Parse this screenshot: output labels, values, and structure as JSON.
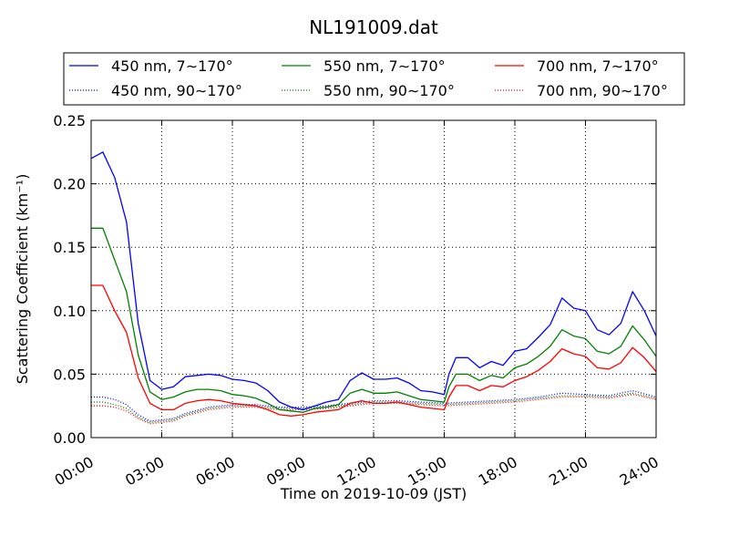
{
  "chart_data": {
    "type": "line",
    "title": "NL191009.dat",
    "xlabel": "Time on 2019-10-09 (JST)",
    "ylabel": "Scattering Coefficient (km⁻¹)",
    "x_unit": "hour",
    "xlim": [
      0,
      24
    ],
    "ylim": [
      0,
      0.25
    ],
    "xticks": [
      0,
      3,
      6,
      9,
      12,
      15,
      18,
      21,
      24
    ],
    "xtick_labels": [
      "00:00",
      "03:00",
      "06:00",
      "09:00",
      "12:00",
      "15:00",
      "18:00",
      "21:00",
      "24:00"
    ],
    "yticks": [
      0,
      0.05,
      0.1,
      0.15,
      0.2,
      0.25
    ],
    "ytick_labels": [
      "0.00",
      "0.05",
      "0.10",
      "0.15",
      "0.20",
      "0.25"
    ],
    "grid": true,
    "legend_position": "top, above plot",
    "series": [
      {
        "name": "450 nm, 7∼170°",
        "color": "#0000ff",
        "style": "solid",
        "x": [
          0,
          0.5,
          1,
          1.5,
          2,
          2.5,
          3,
          3.5,
          4,
          4.5,
          5,
          5.5,
          6,
          6.5,
          7,
          7.5,
          8,
          8.5,
          9,
          9.5,
          10,
          10.5,
          11,
          11.5,
          12,
          12.5,
          13,
          13.5,
          14,
          14.5,
          15,
          15.2,
          15.5,
          16,
          16.5,
          17,
          17.5,
          18,
          18.5,
          19,
          19.5,
          20,
          20.5,
          21,
          21.5,
          22,
          22.5,
          23,
          23.5,
          24
        ],
        "y": [
          0.22,
          0.225,
          0.205,
          0.17,
          0.09,
          0.045,
          0.038,
          0.04,
          0.048,
          0.049,
          0.05,
          0.049,
          0.046,
          0.045,
          0.043,
          0.037,
          0.028,
          0.024,
          0.022,
          0.025,
          0.028,
          0.03,
          0.045,
          0.051,
          0.046,
          0.046,
          0.047,
          0.043,
          0.037,
          0.036,
          0.034,
          0.05,
          0.063,
          0.063,
          0.055,
          0.06,
          0.057,
          0.068,
          0.07,
          0.079,
          0.089,
          0.11,
          0.102,
          0.1,
          0.085,
          0.081,
          0.09,
          0.115,
          0.1,
          0.08
        ]
      },
      {
        "name": "550 nm, 7∼170°",
        "color": "#008000",
        "style": "solid",
        "x": [
          0,
          0.5,
          1,
          1.5,
          2,
          2.5,
          3,
          3.5,
          4,
          4.5,
          5,
          5.5,
          6,
          6.5,
          7,
          7.5,
          8,
          8.5,
          9,
          9.5,
          10,
          10.5,
          11,
          11.5,
          12,
          12.5,
          13,
          13.5,
          14,
          14.5,
          15,
          15.2,
          15.5,
          16,
          16.5,
          17,
          17.5,
          18,
          18.5,
          19,
          19.5,
          20,
          20.5,
          21,
          21.5,
          22,
          22.5,
          23,
          23.5,
          24
        ],
        "y": [
          0.165,
          0.165,
          0.14,
          0.115,
          0.065,
          0.036,
          0.03,
          0.032,
          0.036,
          0.038,
          0.038,
          0.037,
          0.034,
          0.033,
          0.031,
          0.027,
          0.022,
          0.021,
          0.02,
          0.023,
          0.024,
          0.026,
          0.035,
          0.038,
          0.035,
          0.035,
          0.036,
          0.033,
          0.03,
          0.029,
          0.028,
          0.04,
          0.05,
          0.05,
          0.045,
          0.049,
          0.047,
          0.055,
          0.058,
          0.064,
          0.072,
          0.085,
          0.08,
          0.078,
          0.068,
          0.066,
          0.072,
          0.088,
          0.077,
          0.064
        ]
      },
      {
        "name": "700 nm, 7∼170°",
        "color": "#ff0000",
        "style": "solid",
        "x": [
          0,
          0.5,
          1,
          1.5,
          2,
          2.5,
          3,
          3.5,
          4,
          4.5,
          5,
          5.5,
          6,
          6.5,
          7,
          7.5,
          8,
          8.5,
          9,
          9.5,
          10,
          10.5,
          11,
          11.5,
          12,
          12.5,
          13,
          13.5,
          14,
          14.5,
          15,
          15.2,
          15.5,
          16,
          16.5,
          17,
          17.5,
          18,
          18.5,
          19,
          19.5,
          20,
          20.5,
          21,
          21.5,
          22,
          22.5,
          23,
          23.5,
          24
        ],
        "y": [
          0.12,
          0.12,
          0.1,
          0.083,
          0.047,
          0.027,
          0.022,
          0.022,
          0.027,
          0.029,
          0.03,
          0.029,
          0.027,
          0.026,
          0.025,
          0.022,
          0.018,
          0.017,
          0.018,
          0.02,
          0.021,
          0.022,
          0.027,
          0.029,
          0.027,
          0.027,
          0.028,
          0.026,
          0.024,
          0.023,
          0.022,
          0.032,
          0.041,
          0.041,
          0.037,
          0.041,
          0.04,
          0.045,
          0.048,
          0.053,
          0.06,
          0.07,
          0.066,
          0.064,
          0.055,
          0.054,
          0.059,
          0.071,
          0.063,
          0.052
        ]
      },
      {
        "name": "450 nm, 90∼170°",
        "color": "#0000ff",
        "style": "dotted",
        "x": [
          0,
          0.5,
          1,
          1.5,
          2,
          2.5,
          3,
          3.5,
          4,
          5,
          6,
          7,
          8,
          9,
          10,
          11,
          12,
          13,
          14,
          15,
          16,
          17,
          18,
          19,
          20,
          21,
          22,
          23,
          24
        ],
        "y": [
          0.032,
          0.032,
          0.03,
          0.026,
          0.018,
          0.013,
          0.014,
          0.015,
          0.019,
          0.024,
          0.026,
          0.026,
          0.024,
          0.024,
          0.025,
          0.027,
          0.029,
          0.029,
          0.028,
          0.027,
          0.028,
          0.029,
          0.03,
          0.032,
          0.035,
          0.034,
          0.033,
          0.037,
          0.032
        ]
      },
      {
        "name": "550 nm, 90∼170°",
        "color": "#008000",
        "style": "dotted",
        "x": [
          0,
          0.5,
          1,
          1.5,
          2,
          2.5,
          3,
          3.5,
          4,
          5,
          6,
          7,
          8,
          9,
          10,
          11,
          12,
          13,
          14,
          15,
          16,
          17,
          18,
          19,
          20,
          21,
          22,
          23,
          24
        ],
        "y": [
          0.028,
          0.028,
          0.026,
          0.023,
          0.016,
          0.012,
          0.013,
          0.014,
          0.018,
          0.023,
          0.025,
          0.025,
          0.023,
          0.023,
          0.024,
          0.026,
          0.028,
          0.028,
          0.027,
          0.026,
          0.027,
          0.028,
          0.029,
          0.031,
          0.033,
          0.033,
          0.032,
          0.035,
          0.031
        ]
      },
      {
        "name": "700 nm, 90∼170°",
        "color": "#ff0000",
        "style": "dotted",
        "x": [
          0,
          0.5,
          1,
          1.5,
          2,
          2.5,
          3,
          3.5,
          4,
          5,
          6,
          7,
          8,
          9,
          10,
          11,
          12,
          13,
          14,
          15,
          16,
          17,
          18,
          19,
          20,
          21,
          22,
          23,
          24
        ],
        "y": [
          0.025,
          0.025,
          0.024,
          0.021,
          0.015,
          0.011,
          0.012,
          0.013,
          0.017,
          0.022,
          0.024,
          0.024,
          0.022,
          0.022,
          0.023,
          0.025,
          0.027,
          0.027,
          0.026,
          0.025,
          0.026,
          0.027,
          0.028,
          0.03,
          0.032,
          0.032,
          0.031,
          0.034,
          0.03
        ]
      }
    ]
  }
}
